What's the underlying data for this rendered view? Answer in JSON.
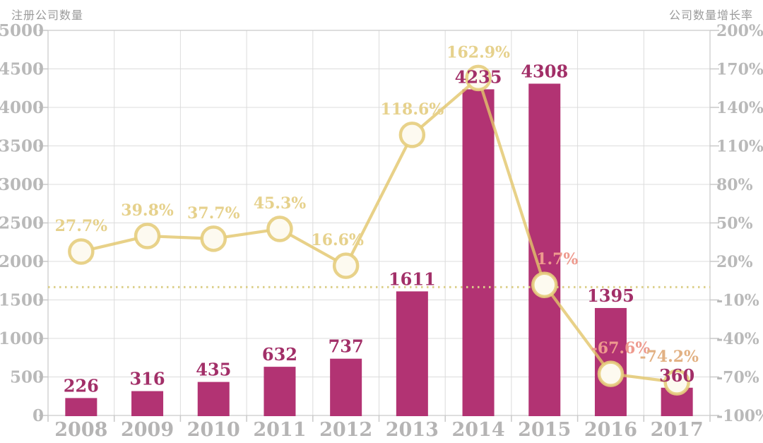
{
  "header": {
    "left_axis_title": "注册公司数量",
    "right_axis_title": "公司数量增长率"
  },
  "colors": {
    "bar": "#b23373",
    "bar_label": "#a22f68",
    "line": "#e2c66a",
    "marker_ring": "#e6cd7d",
    "marker_fill": "#fdfaf0",
    "dotted_line": "#dccf8a",
    "grid": "#dcdcdc",
    "plot_border": "#c9c9c9",
    "tick_mark": "#c9c9c9",
    "tick_label": "#b9b9b9",
    "x_label": "#b5b4b4",
    "axis_title": "#9a9a9a"
  },
  "chart_data": {
    "type": "combo-bar-line",
    "title": "",
    "categories": [
      "2008",
      "2009",
      "2010",
      "2011",
      "2012",
      "2013",
      "2014",
      "2015",
      "2016",
      "2017"
    ],
    "series": [
      {
        "name": "注册公司数量",
        "type": "bar",
        "axis": "left",
        "values": [
          226,
          316,
          435,
          632,
          737,
          1611,
          4235,
          4308,
          1395,
          360
        ],
        "labels": [
          "226",
          "316",
          "435",
          "632",
          "737",
          "1611",
          "4235",
          "4308",
          "1395",
          "360"
        ]
      },
      {
        "name": "公司数量增长率",
        "type": "line",
        "axis": "right",
        "values": [
          27.7,
          39.8,
          37.7,
          45.3,
          16.6,
          118.6,
          162.9,
          1.7,
          -67.6,
          -74.2
        ],
        "labels": [
          "27.7%",
          "39.8%",
          "37.7%",
          "45.3%",
          "16.6%",
          "118.6%",
          "162.9%",
          "1.7%",
          "-67.6%",
          "-74.2%"
        ],
        "label_colors": [
          "#e6d18c",
          "#e6d18c",
          "#e6d18c",
          "#e6d18c",
          "#e6d18c",
          "#e6d18c",
          "#e6d18c",
          "#ee9a8e",
          "#ee9a8e",
          "#e2b183"
        ]
      }
    ],
    "left_axis": {
      "title": "注册公司数量",
      "min": 0,
      "max": 5000,
      "step": 500,
      "ticks": [
        "5000",
        "4500",
        "4000",
        "3500",
        "3000",
        "2500",
        "2000",
        "1500",
        "1000",
        "500",
        "0"
      ]
    },
    "right_axis": {
      "title": "公司数量增长率",
      "min": -100,
      "max": 200,
      "step": 30,
      "ticks": [
        "200%",
        "170%",
        "140%",
        "110%",
        "80%",
        "50%",
        "20%",
        "-10%",
        "-40%",
        "-70%",
        "-100%"
      ]
    },
    "reference_line": {
      "axis": "right",
      "value": 0,
      "style": "dotted"
    },
    "grid": true,
    "legend_position": "none"
  }
}
